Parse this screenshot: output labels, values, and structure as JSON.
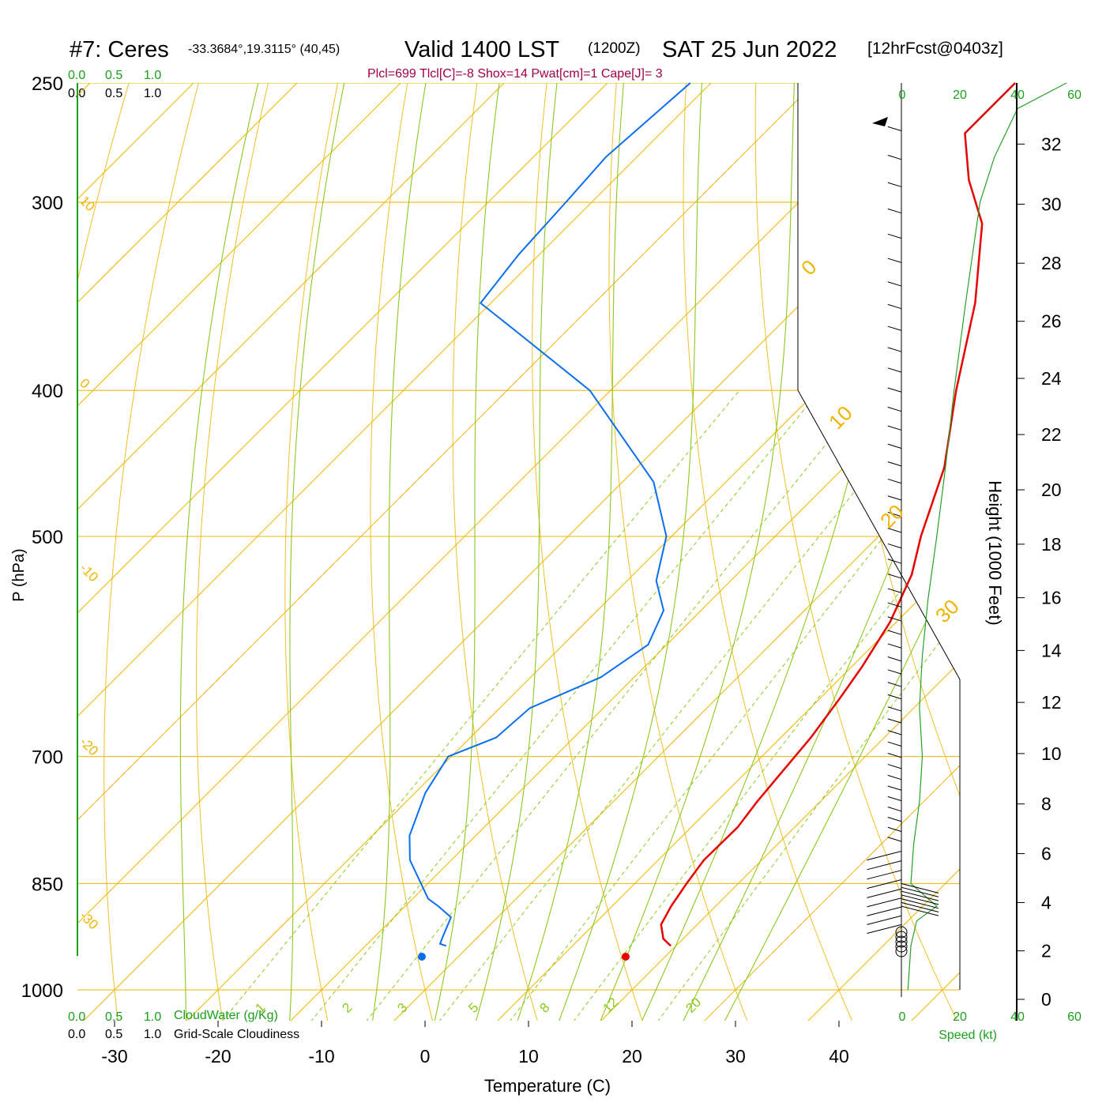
{
  "header": {
    "station": "#7: Ceres",
    "coords": "-33.3684°,19.3115° (40,45)",
    "valid": "Valid 1400 LST",
    "utc": "(1200Z)",
    "date": "SAT 25 Jun 2022",
    "forecast": "[12hrFcst@0403z]",
    "indices": "Plcl=699 Tlcl[C]=-8 Shox=14 Pwat[cm]=1 Cape[J]= 3"
  },
  "cloud_scale": {
    "ticks": [
      "0.0",
      "0.5",
      "1.0"
    ],
    "cloudwater_label": "CloudWater (g/Kg)",
    "cloudiness_label": "Grid-Scale Cloudiness"
  },
  "speed_scale": {
    "ticks": [
      "0",
      "20",
      "40",
      "60"
    ],
    "label": "Speed (kt)"
  },
  "colors": {
    "isobar": "#f0b400",
    "isotherm": "#f0b400",
    "dry_adiabat": "#f0b400",
    "moist_adiabat": "#8cc81e",
    "mixing_ratio": "#8cc81e",
    "temperature": "#e60000",
    "dewpoint": "#0a6ef0",
    "wind_speed": "#28a028",
    "label_green": "#1aa01a",
    "title_magenta": "#a0004b"
  },
  "chart_data": {
    "type": "skew-t",
    "xlabel": "Temperature (C)",
    "ylabel": "P (hPa)",
    "y2label": "Height (1000 Feet)",
    "xlim": [
      -30,
      40
    ],
    "ylim_hpa": [
      1000,
      250
    ],
    "x_ticks": [
      -30,
      -20,
      -10,
      0,
      10,
      20,
      30,
      40
    ],
    "pressure_ticks": [
      250,
      300,
      400,
      500,
      700,
      850,
      1000
    ],
    "height_ticks": [
      0,
      2,
      4,
      6,
      8,
      10,
      12,
      14,
      16,
      18,
      20,
      22,
      24,
      26,
      28,
      30,
      32
    ],
    "isotherm_labels": [
      "10",
      "0",
      "-10",
      "-20",
      "-30"
    ],
    "right_isotherm_labels": [
      "0",
      "10",
      "20",
      "30"
    ],
    "mixing_ratio_labels": [
      "1",
      "2",
      "3",
      "5",
      "8",
      "12",
      "20"
    ],
    "series": [
      {
        "name": "Temperature",
        "points": [
          [
            19.5,
            935
          ],
          [
            18.1,
            925
          ],
          [
            16.5,
            905
          ],
          [
            15.7,
            880
          ],
          [
            15.0,
            850
          ],
          [
            14.4,
            820
          ],
          [
            14.5,
            780
          ],
          [
            13.9,
            750
          ],
          [
            13.2,
            700
          ],
          [
            12.9,
            680
          ],
          [
            11.9,
            640
          ],
          [
            11.0,
            610
          ],
          [
            9.4,
            570
          ],
          [
            6.9,
            530
          ],
          [
            4.1,
            500
          ],
          [
            -0.3,
            450
          ],
          [
            -6.6,
            400
          ],
          [
            -13.2,
            350
          ],
          [
            -20.2,
            310
          ],
          [
            -25.7,
            290
          ],
          [
            -30.6,
            270
          ],
          [
            -30.6,
            250
          ]
        ]
      },
      {
        "name": "Dewpoint",
        "points": [
          [
            -2.2,
            935
          ],
          [
            -3.0,
            932
          ],
          [
            -3.5,
            920
          ],
          [
            -4.5,
            895
          ],
          [
            -6.8,
            880
          ],
          [
            -8.5,
            870
          ],
          [
            -14.0,
            820
          ],
          [
            -16.4,
            790
          ],
          [
            -19.0,
            740
          ],
          [
            -20.3,
            700
          ],
          [
            -17.5,
            680
          ],
          [
            -17.1,
            650
          ],
          [
            -13.2,
            620
          ],
          [
            -11.8,
            590
          ],
          [
            -13.6,
            560
          ],
          [
            -17.2,
            535
          ],
          [
            -20.5,
            500
          ],
          [
            -27.0,
            460
          ],
          [
            -42.0,
            400
          ],
          [
            -55.0,
            365
          ],
          [
            -61.0,
            350
          ],
          [
            -62.0,
            325
          ],
          [
            -62.5,
            300
          ],
          [
            -63.0,
            280
          ],
          [
            -62.0,
            250
          ]
        ]
      },
      {
        "name": "Wind speed",
        "points": [
          [
            2,
            1000
          ],
          [
            3,
            935
          ],
          [
            5,
            900
          ],
          [
            12,
            880
          ],
          [
            3,
            850
          ],
          [
            4,
            800
          ],
          [
            6,
            750
          ],
          [
            7,
            700
          ],
          [
            6,
            650
          ],
          [
            7,
            600
          ],
          [
            9,
            550
          ],
          [
            12,
            500
          ],
          [
            15,
            450
          ],
          [
            18,
            400
          ],
          [
            22,
            350
          ],
          [
            27,
            300
          ],
          [
            32,
            280
          ],
          [
            40,
            260
          ],
          [
            57,
            250
          ]
        ]
      }
    ]
  }
}
